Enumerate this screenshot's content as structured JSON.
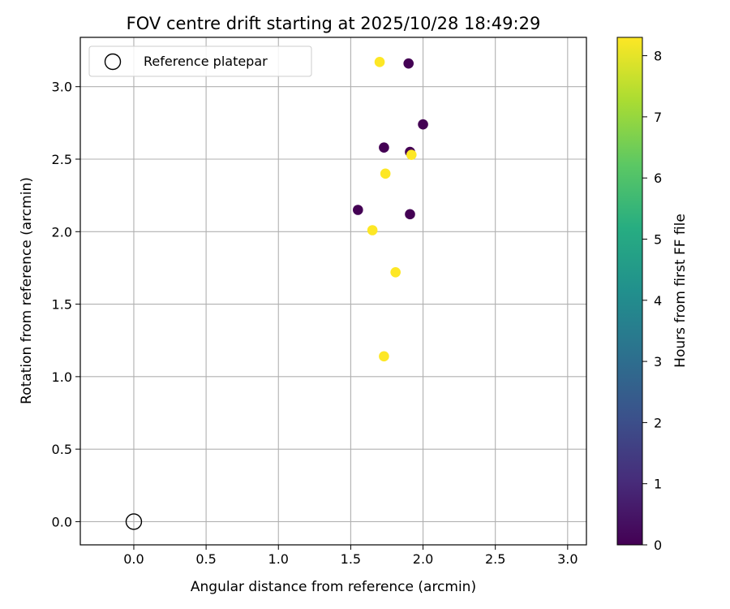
{
  "chart_data": {
    "type": "scatter",
    "title": "FOV centre drift starting at 2025/10/28 18:49:29",
    "xlabel": "Angular distance from reference (arcmin)",
    "ylabel": "Rotation from reference (arcmin)",
    "xlim": [
      -0.37,
      3.13
    ],
    "ylim": [
      -0.16,
      3.34
    ],
    "xticks": [
      0.0,
      0.5,
      1.0,
      1.5,
      2.0,
      2.5,
      3.0
    ],
    "xtick_labels": [
      "0.0",
      "0.5",
      "1.0",
      "1.5",
      "2.0",
      "2.5",
      "3.0"
    ],
    "yticks": [
      0.0,
      0.5,
      1.0,
      1.5,
      2.0,
      2.5,
      3.0
    ],
    "ytick_labels": [
      "0.0",
      "0.5",
      "1.0",
      "1.5",
      "2.0",
      "2.5",
      "3.0"
    ],
    "grid": true,
    "legend": {
      "position": "top-left",
      "entries": [
        "Reference platepar"
      ]
    },
    "reference_point": {
      "x": 0.0,
      "y": 0.0,
      "label": "Reference platepar"
    },
    "colorbar": {
      "label": "Hours from first FF file",
      "range": [
        0,
        8.3
      ],
      "ticks": [
        0,
        1,
        2,
        3,
        4,
        5,
        6,
        7,
        8
      ],
      "tick_labels": [
        "0",
        "1",
        "2",
        "3",
        "4",
        "5",
        "6",
        "7",
        "8"
      ],
      "colormap": "viridis"
    },
    "points": [
      {
        "x": 1.9,
        "y": 3.16,
        "hours": 0.0
      },
      {
        "x": 2.0,
        "y": 2.74,
        "hours": 0.0
      },
      {
        "x": 1.73,
        "y": 2.58,
        "hours": 0.0
      },
      {
        "x": 1.91,
        "y": 2.55,
        "hours": 0.0
      },
      {
        "x": 1.55,
        "y": 2.15,
        "hours": 0.0
      },
      {
        "x": 1.91,
        "y": 2.12,
        "hours": 0.0
      },
      {
        "x": 1.7,
        "y": 3.17,
        "hours": 8.3
      },
      {
        "x": 1.92,
        "y": 2.53,
        "hours": 8.3
      },
      {
        "x": 1.74,
        "y": 2.4,
        "hours": 8.3
      },
      {
        "x": 1.65,
        "y": 2.01,
        "hours": 8.3
      },
      {
        "x": 1.81,
        "y": 1.72,
        "hours": 8.3
      },
      {
        "x": 1.73,
        "y": 1.14,
        "hours": 8.3
      }
    ]
  }
}
